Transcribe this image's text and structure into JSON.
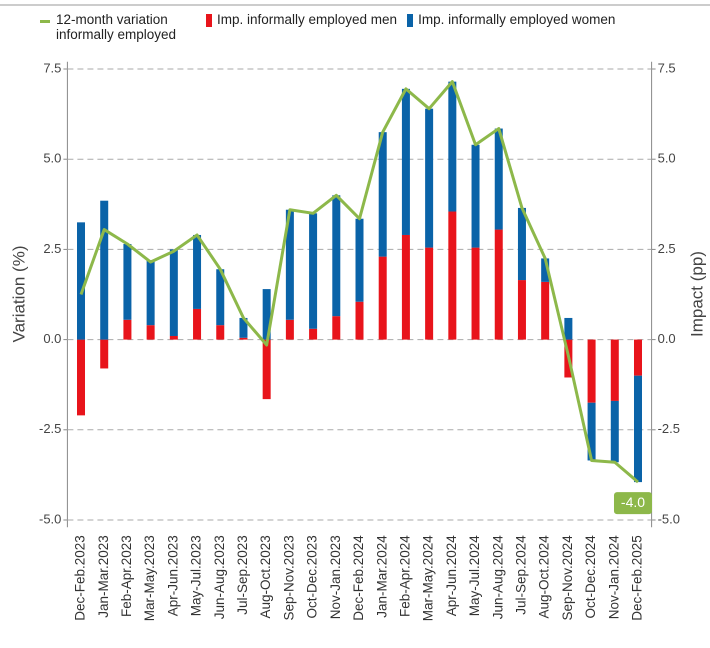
{
  "chart_data": {
    "type": "bar",
    "y_label": "Variation (%)",
    "y2_label": "Impact (pp)",
    "categories": [
      "Dec-Feb.2023",
      "Jan-Mar.2023",
      "Feb-Apr.2023",
      "Mar-May.2023",
      "Apr-Jun.2023",
      "May-Jul.2023",
      "Jun-Aug.2023",
      "Jul-Sep.2023",
      "Aug-Oct.2023",
      "Sep-Nov.2023",
      "Oct-Dec.2023",
      "Nov-Jan.2023",
      "Dec-Feb.2024",
      "Jan-Mar.2024",
      "Feb-Apr.2024",
      "Mar-May.2024",
      "Apr-Jun.2024",
      "May-Jul.2024",
      "Jun-Aug.2024",
      "Jul-Sep.2024",
      "Aug-Oct.2024",
      "Sep-Nov.2024",
      "Oct-Dec.2024",
      "Nov-Jan.2024",
      "Dec-Feb.2025"
    ],
    "series": [
      {
        "name": "12-month variation informally employed",
        "type": "line",
        "axis": "y",
        "color": "#8db84a",
        "values": [
          1.25,
          3.05,
          2.65,
          2.15,
          2.45,
          2.9,
          1.95,
          0.6,
          -0.15,
          3.6,
          3.5,
          4.0,
          3.35,
          5.75,
          6.95,
          6.4,
          7.15,
          5.4,
          5.85,
          3.65,
          2.25,
          -0.45,
          -3.35,
          -3.4,
          -3.95
        ],
        "value_labels": [
          null,
          null,
          null,
          null,
          null,
          null,
          null,
          null,
          null,
          null,
          null,
          null,
          null,
          null,
          null,
          null,
          null,
          null,
          null,
          null,
          null,
          null,
          null,
          null,
          "-4.0"
        ]
      },
      {
        "name": "Imp. informally employed men",
        "type": "bar",
        "axis": "y2",
        "color": "#e8141b",
        "values": [
          -2.1,
          -0.8,
          0.55,
          0.4,
          0.1,
          0.85,
          0.4,
          0.05,
          -1.65,
          0.55,
          0.3,
          0.65,
          1.05,
          2.3,
          2.9,
          2.55,
          3.55,
          2.55,
          3.05,
          1.65,
          1.6,
          -1.05,
          -1.75,
          -1.7,
          -1.0
        ]
      },
      {
        "name": "Imp. informally employed women",
        "type": "bar",
        "axis": "y2",
        "color": "#0a63a8",
        "values": [
          3.25,
          3.85,
          2.1,
          1.8,
          2.4,
          2.05,
          1.55,
          0.55,
          1.4,
          3.05,
          3.2,
          3.35,
          2.3,
          3.45,
          4.05,
          3.85,
          3.6,
          2.85,
          2.8,
          2.0,
          0.65,
          0.6,
          -1.6,
          -1.7,
          -2.95
        ]
      }
    ],
    "ylim": [
      -5.2,
      7.7
    ],
    "y2lim": [
      -5.2,
      7.7
    ],
    "yticks": [
      7.5,
      {
        "value": 5,
        "label": "5.0"
      },
      2.5,
      {
        "value": 0,
        "label": "0.0"
      },
      -2.5,
      {
        "value": -5,
        "label": "-5.0"
      }
    ],
    "y2ticks": [
      7.5,
      {
        "value": 5,
        "label": "5.0"
      },
      2.5,
      {
        "value": 0,
        "label": "0.0"
      },
      -2.5,
      {
        "value": -5,
        "label": "-5.0"
      }
    ],
    "grid": true
  }
}
